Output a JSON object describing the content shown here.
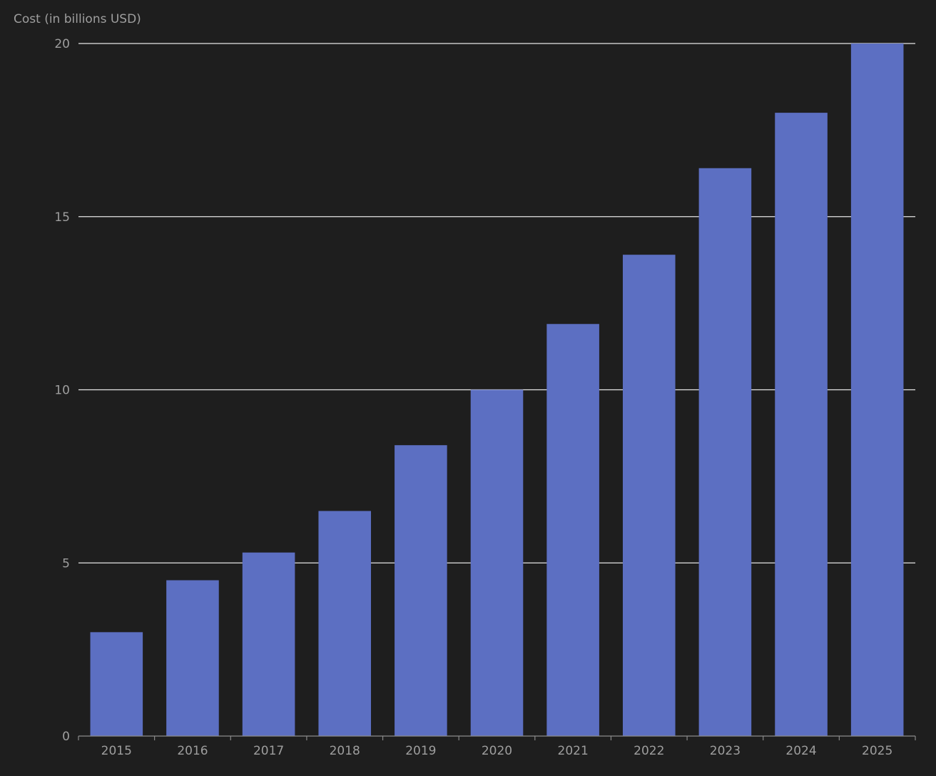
{
  "chart_data": {
    "type": "bar",
    "title": "",
    "xlabel": "",
    "ylabel": "Cost (in billions USD)",
    "categories": [
      "2015",
      "2016",
      "2017",
      "2018",
      "2019",
      "2020",
      "2021",
      "2022",
      "2023",
      "2024",
      "2025"
    ],
    "values": [
      3.0,
      4.5,
      5.3,
      6.5,
      8.4,
      10.0,
      11.9,
      13.9,
      16.4,
      18.0,
      20.0
    ],
    "ylim": [
      0,
      20
    ],
    "yticks": [
      "0",
      "5",
      "10",
      "15",
      "20"
    ],
    "grid": true,
    "colors": {
      "background": "#1e1e1e",
      "bar": "#5c6fc2",
      "grid": "#e6e6e6",
      "axis": "#8a8a8a",
      "label": "#9e9e9e"
    }
  }
}
